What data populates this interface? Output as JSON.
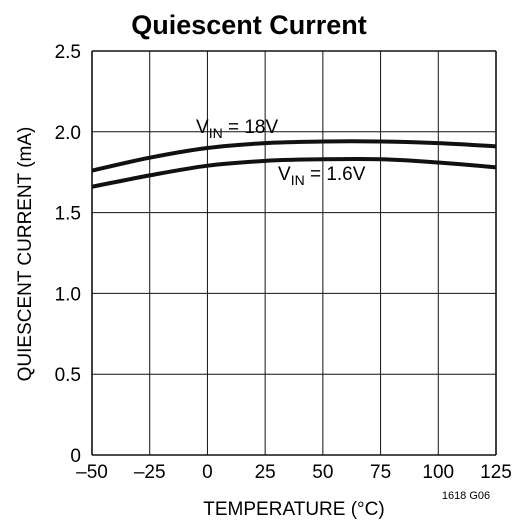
{
  "chart_data": {
    "type": "line",
    "title": "Quiescent Current",
    "xlabel": "TEMPERATURE (°C)",
    "ylabel": "QUIESCENT CURRENT (mA)",
    "xlim": [
      -50,
      125
    ],
    "ylim": [
      0,
      2.5
    ],
    "x_ticks": [
      "–50",
      "–25",
      "0",
      "25",
      "50",
      "75",
      "100",
      "125"
    ],
    "y_ticks": [
      "0",
      "0.5",
      "1.0",
      "1.5",
      "2.0",
      "2.5"
    ],
    "grid": true,
    "figure_number": "1618 G06",
    "series": [
      {
        "name": "V_IN = 18V",
        "label_main": "V",
        "label_sub": "IN",
        "label_rest": " = 18V",
        "x": [
          -50,
          -25,
          0,
          25,
          50,
          75,
          100,
          125
        ],
        "y": [
          1.76,
          1.84,
          1.9,
          1.93,
          1.94,
          1.94,
          1.93,
          1.91
        ]
      },
      {
        "name": "V_IN = 1.6V",
        "label_main": "V",
        "label_sub": "IN",
        "label_rest": " = 1.6V",
        "x": [
          -50,
          -25,
          0,
          25,
          50,
          75,
          100,
          125
        ],
        "y": [
          1.66,
          1.73,
          1.79,
          1.82,
          1.83,
          1.83,
          1.81,
          1.78
        ]
      }
    ],
    "line_color": "#111111",
    "grid_color": "#111111"
  }
}
